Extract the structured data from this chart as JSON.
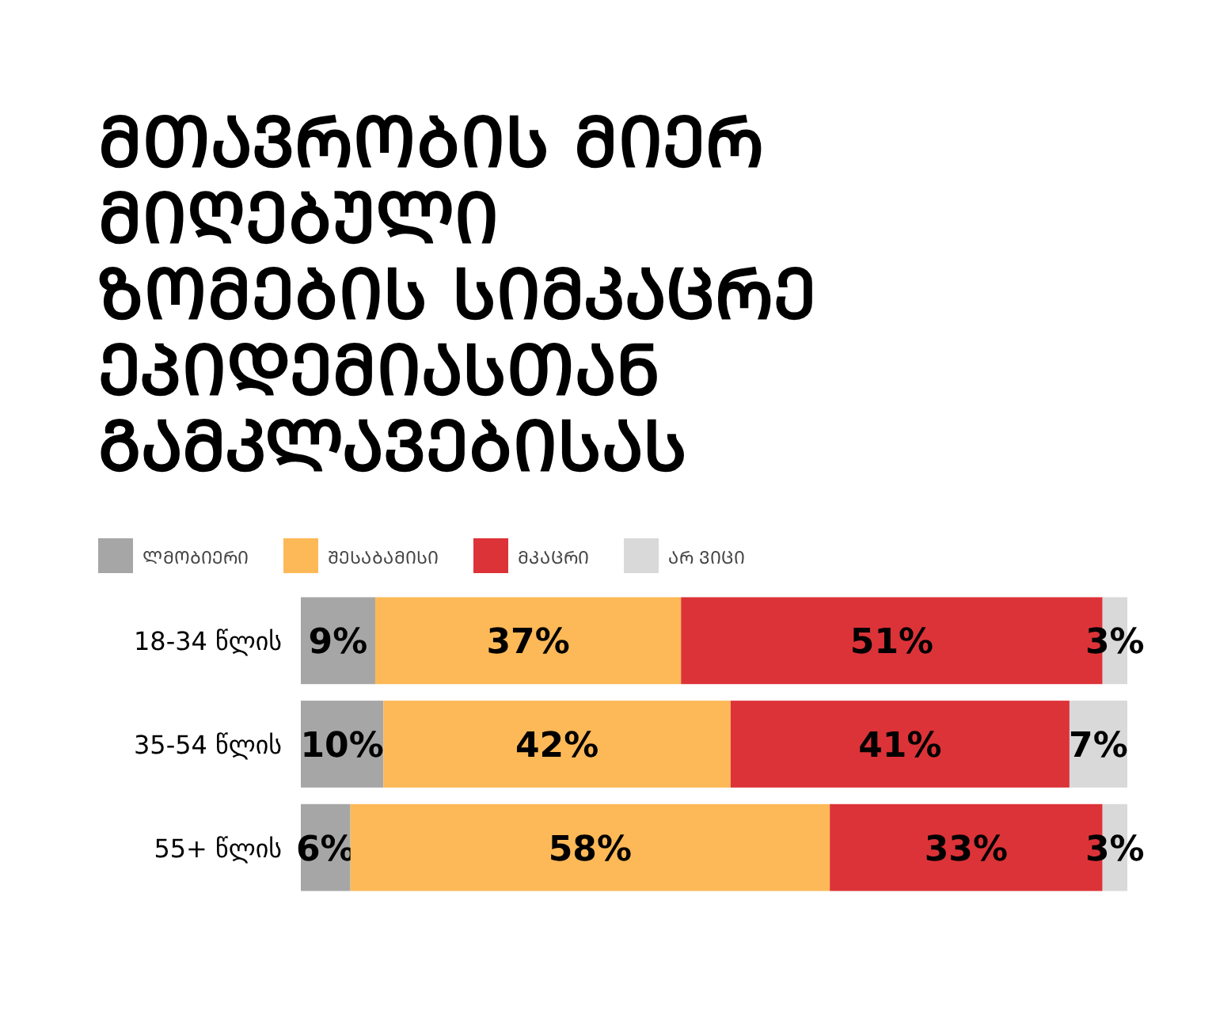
{
  "chart_data": {
    "type": "bar",
    "orientation": "horizontal",
    "stacked": true,
    "title": "ᲛᲗᲐᲕᲠᲝᲑᲘᲡ ᲛᲘᲔᲠ ᲛᲘᲦᲔᲑᲣᲚᲘ ᲖᲝᲛᲔᲑᲘᲡ ᲡᲘᲛᲙᲐᲪᲠᲔ ᲔᲞᲘᲓᲔᲛᲘᲐᲡᲗᲐᲜ ᲒᲐᲛᲙᲚᲐᲕᲔᲑᲘᲡᲐᲡ",
    "categories": [
      "18-34 წლის",
      "35-54 წლის",
      "55+ წლის"
    ],
    "series": [
      {
        "name": "ᲚᲛᲝᲑᲘᲔᲠᲘ",
        "color": "#a6a6a6",
        "values": [
          9,
          10,
          6
        ],
        "value_labels": [
          "9%",
          "10%",
          "6%"
        ]
      },
      {
        "name": "ᲨᲔᲡᲐᲑᲐᲛᲘᲡᲘ",
        "color": "#fdb957",
        "values": [
          37,
          42,
          58
        ],
        "value_labels": [
          "37%",
          "42%",
          "58%"
        ]
      },
      {
        "name": "ᲛᲙᲐᲪᲠᲘ",
        "color": "#dc3338",
        "values": [
          51,
          41,
          33
        ],
        "value_labels": [
          "51%",
          "41%",
          "33%"
        ]
      },
      {
        "name": "ᲐᲠ ᲕᲘᲪᲘ",
        "color": "#d9d9d9",
        "values": [
          3,
          7,
          3
        ],
        "value_labels": [
          "3%",
          "7%",
          "3%"
        ]
      }
    ],
    "tick_labels": "y",
    "legend": "top left"
  }
}
